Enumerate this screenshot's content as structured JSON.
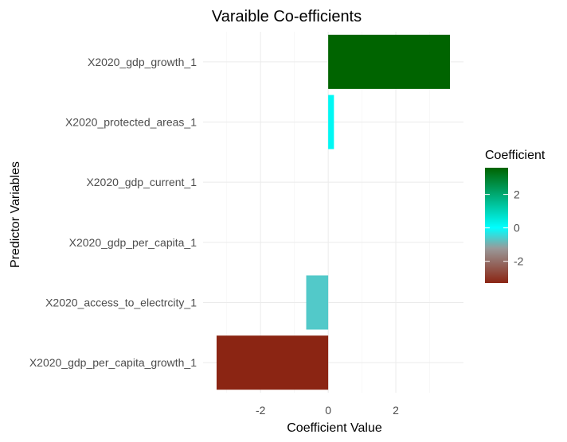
{
  "chart_data": {
    "type": "bar",
    "orientation": "horizontal",
    "title": "Varaible Co-efficients",
    "xlabel": "Coefficient Value",
    "ylabel": "Predictor Variables",
    "categories": [
      "X2020_gdp_growth_1",
      "X2020_protected_areas_1",
      "X2020_gdp_current_1",
      "X2020_gdp_per_capita_1",
      "X2020_access_to_electrcity_1",
      "X2020_gdp_per_capita_growth_1"
    ],
    "values": [
      3.6,
      0.17,
      0.0,
      0.0,
      -0.65,
      -3.3
    ],
    "xlim": [
      -3.7,
      4.0
    ],
    "xticks": [
      -2,
      0,
      2
    ],
    "xtick_labels": [
      "-2",
      "0",
      "2"
    ],
    "grid": true,
    "legend": {
      "title": "Coefficient",
      "position": "right",
      "type": "colorbar",
      "range": [
        -3.3,
        3.6
      ],
      "ticks": [
        2,
        0,
        -2
      ],
      "tick_labels": [
        "2",
        "0",
        "-2"
      ],
      "colors": {
        "low": "#8b2513",
        "mid_low": "#999999",
        "mid": "#00ffff",
        "high": "#006400"
      }
    }
  }
}
